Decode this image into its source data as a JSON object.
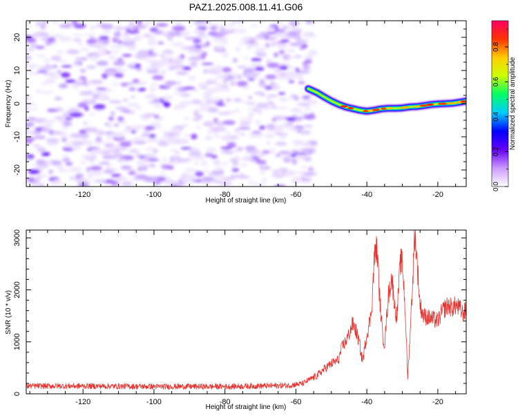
{
  "chart_data": [
    {
      "type": "heatmap",
      "title": "PAZ1.2025.008.11.41.G06",
      "xlabel": "Height of straight line (km)",
      "ylabel": "Frequency (Hz)",
      "xlim": [
        -136,
        -12
      ],
      "ylim": [
        -25,
        25
      ],
      "x_ticks": [
        -120,
        -100,
        -80,
        -60,
        -40,
        -20
      ],
      "y_ticks": [
        -20,
        -10,
        0,
        10,
        20
      ],
      "noise_region_x": [
        -136,
        -55
      ],
      "signal_track": {
        "x": [
          -56.5,
          -54,
          -52,
          -50,
          -48,
          -46,
          -44,
          -42,
          -40,
          -38,
          -36,
          -34,
          -32,
          -30,
          -28,
          -26,
          -24,
          -22,
          -20,
          -18,
          -16,
          -14,
          -12
        ],
        "y": [
          4.5,
          3.3,
          2.0,
          0.8,
          -0.2,
          -1.0,
          -1.5,
          -2.0,
          -2.3,
          -2.0,
          -1.6,
          -1.4,
          -1.4,
          -1.3,
          -1.0,
          -0.9,
          -0.6,
          -0.3,
          -0.1,
          0.0,
          0.1,
          0.4,
          0.8
        ]
      },
      "colorbar": {
        "label": "Normalized spectral amplitude",
        "range": [
          0.0,
          0.95
        ],
        "ticks": [
          0.0,
          0.2,
          0.4,
          0.6,
          0.8
        ],
        "tick_labels": [
          "0.0",
          "0.2",
          "0.4",
          "0.6",
          "0.8"
        ],
        "colors": [
          "#ffffff",
          "#cc99ff",
          "#6600ff",
          "#0000ff",
          "#00ccff",
          "#00ff66",
          "#ccff00",
          "#ffcc00",
          "#ff3300",
          "#ff0066"
        ]
      },
      "grid": false
    },
    {
      "type": "line",
      "title": "",
      "xlabel": "Height of straight line (km)",
      "ylabel": "SNR (10 * v/v)",
      "xlim": [
        -136,
        -12
      ],
      "ylim": [
        0,
        3150
      ],
      "x_ticks": [
        -120,
        -100,
        -80,
        -60,
        -40,
        -20
      ],
      "y_ticks": [
        0,
        1000,
        2000,
        3000
      ],
      "line_color": "#e8322e",
      "series": [
        {
          "x": [
            -136,
            -120,
            -100,
            -80,
            -62,
            -58,
            -56,
            -54,
            -52,
            -50,
            -48,
            -47,
            -46,
            -45,
            -44,
            -43,
            -42,
            -41.5,
            -41,
            -40,
            -39,
            -38.5,
            -38,
            -37.5,
            -37,
            -36.5,
            -36,
            -35.5,
            -35,
            -34,
            -33,
            -32,
            -31.5,
            -31,
            -30.5,
            -30,
            -29.5,
            -29,
            -28.5,
            -28,
            -27.5,
            -27,
            -26.5,
            -26,
            -25.5,
            -25,
            -24,
            -22,
            -20,
            -19,
            -18,
            -17,
            -16,
            -15,
            -14,
            -13,
            -12
          ],
          "values": [
            150,
            150,
            140,
            140,
            160,
            200,
            280,
            350,
            480,
            580,
            650,
            900,
            1000,
            1150,
            1350,
            1200,
            950,
            700,
            700,
            1150,
            1450,
            1800,
            2500,
            2820,
            2700,
            1950,
            1500,
            1100,
            950,
            1850,
            2250,
            1600,
            1500,
            2100,
            2550,
            2500,
            2000,
            1300,
            300,
            900,
            1600,
            2300,
            3100,
            2700,
            2200,
            1700,
            1500,
            1450,
            1400,
            1550,
            1650,
            1700,
            1650,
            1700,
            1650,
            1550,
            1600
          ]
        }
      ],
      "grid": false
    }
  ]
}
